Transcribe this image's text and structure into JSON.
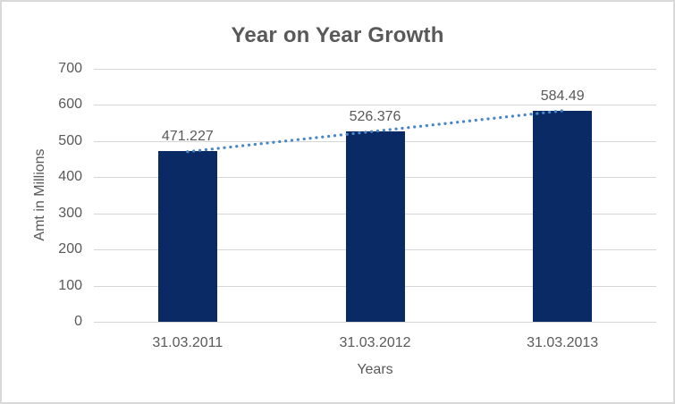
{
  "window": {
    "background": "#FFFFFF",
    "border_color": "#D9D9D9"
  },
  "chart_data": {
    "type": "bar",
    "title": "Year on Year Growth",
    "categories": [
      "31.03.2011",
      "31.03.2012",
      "31.03.2013"
    ],
    "values": [
      471.227,
      526.376,
      584.49
    ],
    "data_labels": [
      "471.227",
      "526.376",
      "584.49"
    ],
    "xlabel": "Years",
    "ylabel": "Amt in Millions",
    "ylim": [
      0,
      700
    ],
    "yticks": [
      0,
      100,
      200,
      300,
      400,
      500,
      600,
      700
    ],
    "grid": true,
    "legend": "none",
    "bar_color": "#0A2A66",
    "gridline_color": "#D6D6D6",
    "text_color": "#595959",
    "trendline": {
      "type": "linear",
      "style": "dotted",
      "color": "#4A86C8",
      "start_value": 470.7,
      "end_value": 584.0
    }
  }
}
